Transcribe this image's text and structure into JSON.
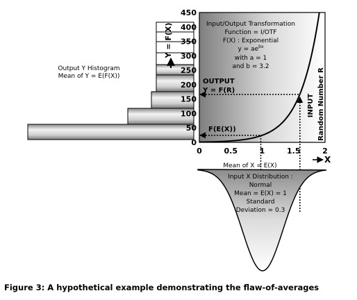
{
  "chart_data": {
    "type": "line",
    "function": "exponential",
    "params": {
      "a": 1,
      "b": 3.2
    },
    "xlim": [
      0,
      2
    ],
    "ylim": [
      0,
      450
    ],
    "x_ticks": [
      "0",
      "0.5",
      "1",
      "1.5",
      "2"
    ],
    "y_ticks": [
      "450",
      "400",
      "350",
      "300",
      "250",
      "200",
      "150",
      "100",
      "50",
      "0"
    ],
    "x_axis_label": "X",
    "y_axis_label": "Y = F(X)",
    "mean_x": 1,
    "random_input_x": 1.6,
    "output_y_at_mean": 24.5,
    "output_y_at_input": 166,
    "input_distribution": {
      "type": "normal",
      "mean": 1,
      "sd": 0.3
    }
  },
  "texts": {
    "transform_title": "Input/Output Transformation",
    "transform_function": "Function = I/OTF",
    "transform_fx": "F(X) : Exponential",
    "transform_eq_base": "y = ae",
    "transform_eq_exp": "bx",
    "transform_a": "with a = 1",
    "transform_b": "and b = 3.2",
    "output_label": "OUTPUT",
    "output_eq": "Y = F(R)",
    "fex_label": "F(E(X))",
    "input_label": "INPUT",
    "random_label": "Random Number R",
    "hist_title": "Output Y Histogram",
    "hist_mean": "Mean of Y = E(F(X))",
    "mean_x_label": "Mean of X = E(X)",
    "dist_title": "Input X Distribution :",
    "dist_type": "Normal",
    "dist_mean": "Mean = E(X) = 1",
    "dist_sd1": "Standard",
    "dist_sd2": "Deviation = 0.3",
    "caption": "Figure 3: A hypothetical example demonstrating the flaw-of-averages"
  }
}
